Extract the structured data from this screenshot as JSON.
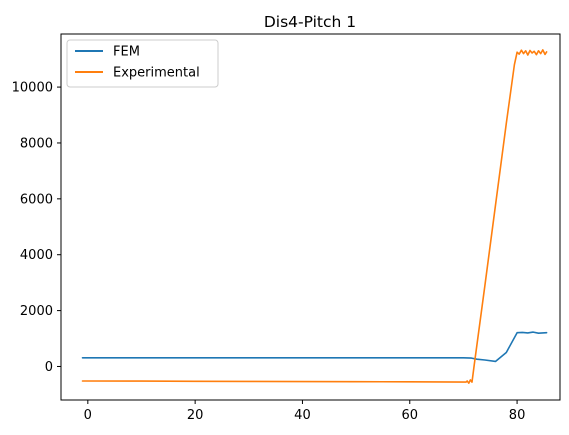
{
  "chart_data": {
    "type": "line",
    "title": "Dis4-Pitch 1",
    "xlabel": "",
    "ylabel": "",
    "xlim": [
      -5,
      88
    ],
    "ylim": [
      -1200,
      11900
    ],
    "xticks": [
      0,
      20,
      40,
      60,
      80
    ],
    "yticks": [
      0,
      2000,
      4000,
      6000,
      8000,
      10000
    ],
    "grid": false,
    "legend_position": "top-left",
    "series": [
      {
        "name": "FEM",
        "color": "#1f77b4",
        "x": [
          -1,
          10,
          20,
          30,
          40,
          50,
          60,
          70,
          71.5,
          72.5,
          74,
          76,
          78,
          80,
          81,
          82,
          83,
          84,
          85.5
        ],
        "y": [
          310,
          310,
          310,
          310,
          310,
          310,
          310,
          310,
          300,
          260,
          230,
          180,
          500,
          1210,
          1220,
          1200,
          1230,
          1190,
          1210
        ]
      },
      {
        "name": "Experimental",
        "color": "#ff7f0e",
        "x": [
          -1,
          10,
          20,
          30,
          40,
          50,
          60,
          70.5,
          70.7,
          71,
          71.3,
          71.6,
          72,
          74,
          76,
          78,
          79.5,
          80,
          80.4,
          80.8,
          81.2,
          81.6,
          82,
          82.4,
          82.8,
          83.2,
          83.6,
          84,
          84.4,
          84.8,
          85.2,
          85.5
        ],
        "y": [
          -520,
          -525,
          -530,
          -535,
          -540,
          -545,
          -550,
          -560,
          -520,
          -600,
          -480,
          -560,
          50,
          2900,
          5800,
          8700,
          10800,
          11250,
          11180,
          11320,
          11200,
          11300,
          11150,
          11310,
          11220,
          11280,
          11160,
          11300,
          11200,
          11330,
          11170,
          11260
        ]
      }
    ]
  }
}
